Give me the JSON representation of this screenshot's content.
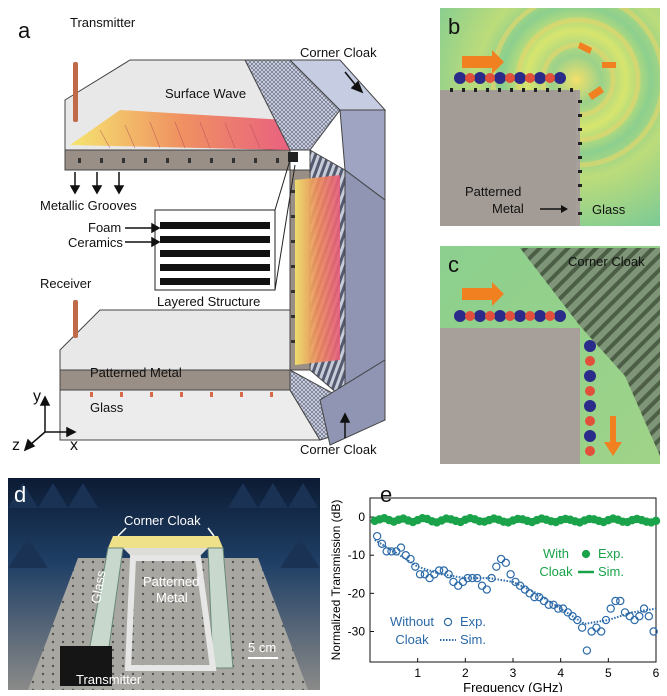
{
  "panels": {
    "a": {
      "letter": "a",
      "transmitter": "Transmitter",
      "corner_cloak_top": "Corner Cloak",
      "surface_wave": "Surface Wave",
      "metallic_grooves": "Metallic Grooves",
      "foam": "Foam",
      "ceramics": "Ceramics",
      "layered_structure": "Layered Structure",
      "receiver": "Receiver",
      "patterned_metal": "Patterned Metal",
      "glass": "Glass",
      "corner_cloak_bottom": "Corner Cloak",
      "axis_y": "y",
      "axis_z": "z",
      "axis_x": "x"
    },
    "b": {
      "letter": "b",
      "patterned": "Patterned",
      "metal": "Metal",
      "glass": "Glass"
    },
    "c": {
      "letter": "c",
      "corner_cloak": "Corner Cloak"
    },
    "d": {
      "letter": "d",
      "corner_cloak": "Corner Cloak",
      "glass": "Glass",
      "patterned": "Patterned",
      "metal": "Metal",
      "scale": "5 cm",
      "transmitter": "Transmitter"
    },
    "e": {
      "letter": "e"
    }
  },
  "chart_data": {
    "type": "scatter",
    "xlabel": "Frequency (GHz)",
    "ylabel": "Normalized Transmission (dB)",
    "xlim": [
      0,
      6
    ],
    "ylim": [
      -38,
      5
    ],
    "xticks": [
      1,
      2,
      3,
      4,
      5,
      6
    ],
    "yticks": [
      0,
      -10,
      -20,
      -30
    ],
    "series": [
      {
        "group": "With Cloak",
        "style": "filled-circle",
        "color": "#1aa34a",
        "x": [
          0.1,
          0.2,
          0.3,
          0.4,
          0.5,
          0.6,
          0.7,
          0.8,
          0.9,
          1.0,
          1.1,
          1.2,
          1.3,
          1.4,
          1.5,
          1.6,
          1.7,
          1.8,
          1.9,
          2.0,
          2.1,
          2.2,
          2.3,
          2.4,
          2.5,
          2.6,
          2.7,
          2.8,
          2.9,
          3.0,
          3.1,
          3.2,
          3.3,
          3.4,
          3.5,
          3.6,
          3.7,
          3.8,
          3.9,
          4.0,
          4.1,
          4.2,
          4.3,
          4.4,
          4.5,
          4.6,
          4.7,
          4.8,
          4.9,
          5.0,
          5.1,
          5.2,
          5.3,
          5.4,
          5.5,
          5.6,
          5.7,
          5.8,
          5.9,
          6.0
        ],
        "y": [
          -1,
          -0.6,
          -0.3,
          -0.8,
          -1.2,
          -0.7,
          -0.4,
          -0.9,
          -1.3,
          -0.8,
          -0.3,
          -0.5,
          -1.1,
          -1.4,
          -0.9,
          -0.4,
          -0.6,
          -1.0,
          -1.3,
          -0.7,
          -0.3,
          -0.6,
          -1.1,
          -1.2,
          -0.8,
          -0.4,
          -0.7,
          -1.2,
          -1.4,
          -0.9,
          -0.5,
          -0.6,
          -1.0,
          -1.3,
          -0.8,
          -0.4,
          -0.7,
          -1.1,
          -1.3,
          -0.8,
          -0.5,
          -0.7,
          -1.1,
          -1.4,
          -0.9,
          -0.5,
          -0.6,
          -1.0,
          -1.3,
          -0.8,
          -0.4,
          -0.7,
          -1.2,
          -1.3,
          -0.8,
          -0.5,
          -0.8,
          -1.2,
          -1.4,
          -1.0
        ]
      },
      {
        "group": "With Cloak",
        "style": "solid-line",
        "color": "#1aa34a",
        "x": [
          0.1,
          1,
          2,
          3,
          4,
          5,
          6
        ],
        "y": [
          -0.9,
          -0.8,
          -0.8,
          -0.8,
          -0.8,
          -0.8,
          -0.9
        ]
      },
      {
        "group": "Without Cloak",
        "style": "open-circle",
        "color": "#2c6aa8",
        "x": [
          0.15,
          0.25,
          0.35,
          0.45,
          0.55,
          0.65,
          0.75,
          0.85,
          0.95,
          1.05,
          1.15,
          1.25,
          1.35,
          1.45,
          1.55,
          1.65,
          1.75,
          1.85,
          1.95,
          2.05,
          2.15,
          2.25,
          2.35,
          2.45,
          2.55,
          2.65,
          2.75,
          2.85,
          2.95,
          3.05,
          3.15,
          3.25,
          3.35,
          3.45,
          3.55,
          3.65,
          3.75,
          3.85,
          3.95,
          4.05,
          4.15,
          4.25,
          4.35,
          4.45,
          4.55,
          4.65,
          4.75,
          4.85,
          4.95,
          5.05,
          5.15,
          5.25,
          5.35,
          5.45,
          5.55,
          5.65,
          5.75,
          5.85,
          5.95
        ],
        "y": [
          -5,
          -7,
          -9,
          -9,
          -9,
          -8,
          -10,
          -11,
          -13,
          -15,
          -15,
          -16,
          -15,
          -14,
          -14,
          -15,
          -17,
          -18,
          -17,
          -16,
          -16,
          -16,
          -18,
          -19,
          -16,
          -13,
          -11,
          -12,
          -15,
          -17,
          -18,
          -19,
          -20,
          -21,
          -21,
          -22,
          -23,
          -23,
          -24,
          -24,
          -25,
          -26,
          -27,
          -29,
          -35,
          -30,
          -29,
          -30,
          -27,
          -24,
          -22,
          -22,
          -25,
          -26,
          -27,
          -26,
          -24,
          -26,
          -30
        ]
      },
      {
        "group": "Without Cloak",
        "style": "dotted-line",
        "color": "#2c6aa8",
        "x": [
          0.1,
          0.5,
          1,
          1.5,
          2,
          2.5,
          3,
          3.5,
          4,
          4.5,
          5,
          5.5,
          6
        ],
        "y": [
          -6,
          -9,
          -13,
          -15,
          -16,
          -16,
          -17,
          -20,
          -24,
          -28,
          -27,
          -25,
          -24
        ]
      }
    ],
    "legend": {
      "with_label_1": "With",
      "with_label_2": "Cloak",
      "without_label_1": "Without",
      "without_label_2": "Cloak",
      "exp": "Exp.",
      "sim": "Sim."
    }
  }
}
